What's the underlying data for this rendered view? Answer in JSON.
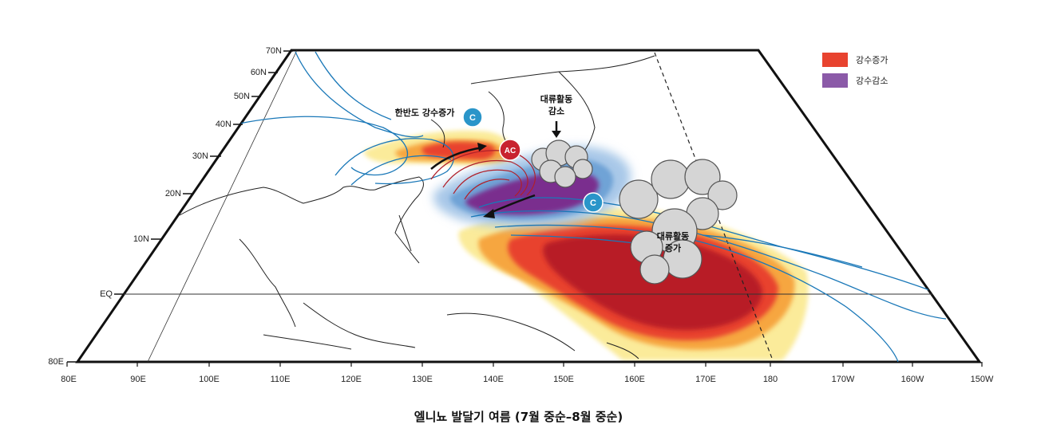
{
  "caption": "엘니뇨 발달기 여름 (7월 중순–8월 중순)",
  "legend": [
    {
      "label": "강수증가",
      "color": "#e8432f"
    },
    {
      "label": "강수감소",
      "color": "#8b5aa8"
    }
  ],
  "lat_labels": [
    "80E",
    "EQ",
    "10N",
    "20N",
    "30N",
    "40N",
    "50N",
    "60N",
    "70N"
  ],
  "lon_labels": [
    "80E",
    "90E",
    "100E",
    "110E",
    "120E",
    "130E",
    "140E",
    "150E",
    "160E",
    "170E",
    "180",
    "170W",
    "160W",
    "150W"
  ],
  "annotations": {
    "korea_rain": "한반도 강수증가",
    "convection_down_l1": "대류활동",
    "convection_down_l2": "감소",
    "convection_up_l1": "대류활동",
    "convection_up_l2": "증가"
  },
  "markers": {
    "cyclone_north": "C",
    "anticyclone": "AC",
    "cyclone_south": "C"
  },
  "colors": {
    "cyclone": "#2a95c9",
    "anticyclone": "#c8232f",
    "rain_strong": "#b81e28",
    "rain_mid": "#e8432f",
    "rain_weak": "#f6a640",
    "rain_faint": "#fbeb9a",
    "dry_strong": "#7a2e8e",
    "dry_weak": "#a8c8e8",
    "contour_blue": "#1a78b8",
    "contour_red": "#b0202a"
  }
}
